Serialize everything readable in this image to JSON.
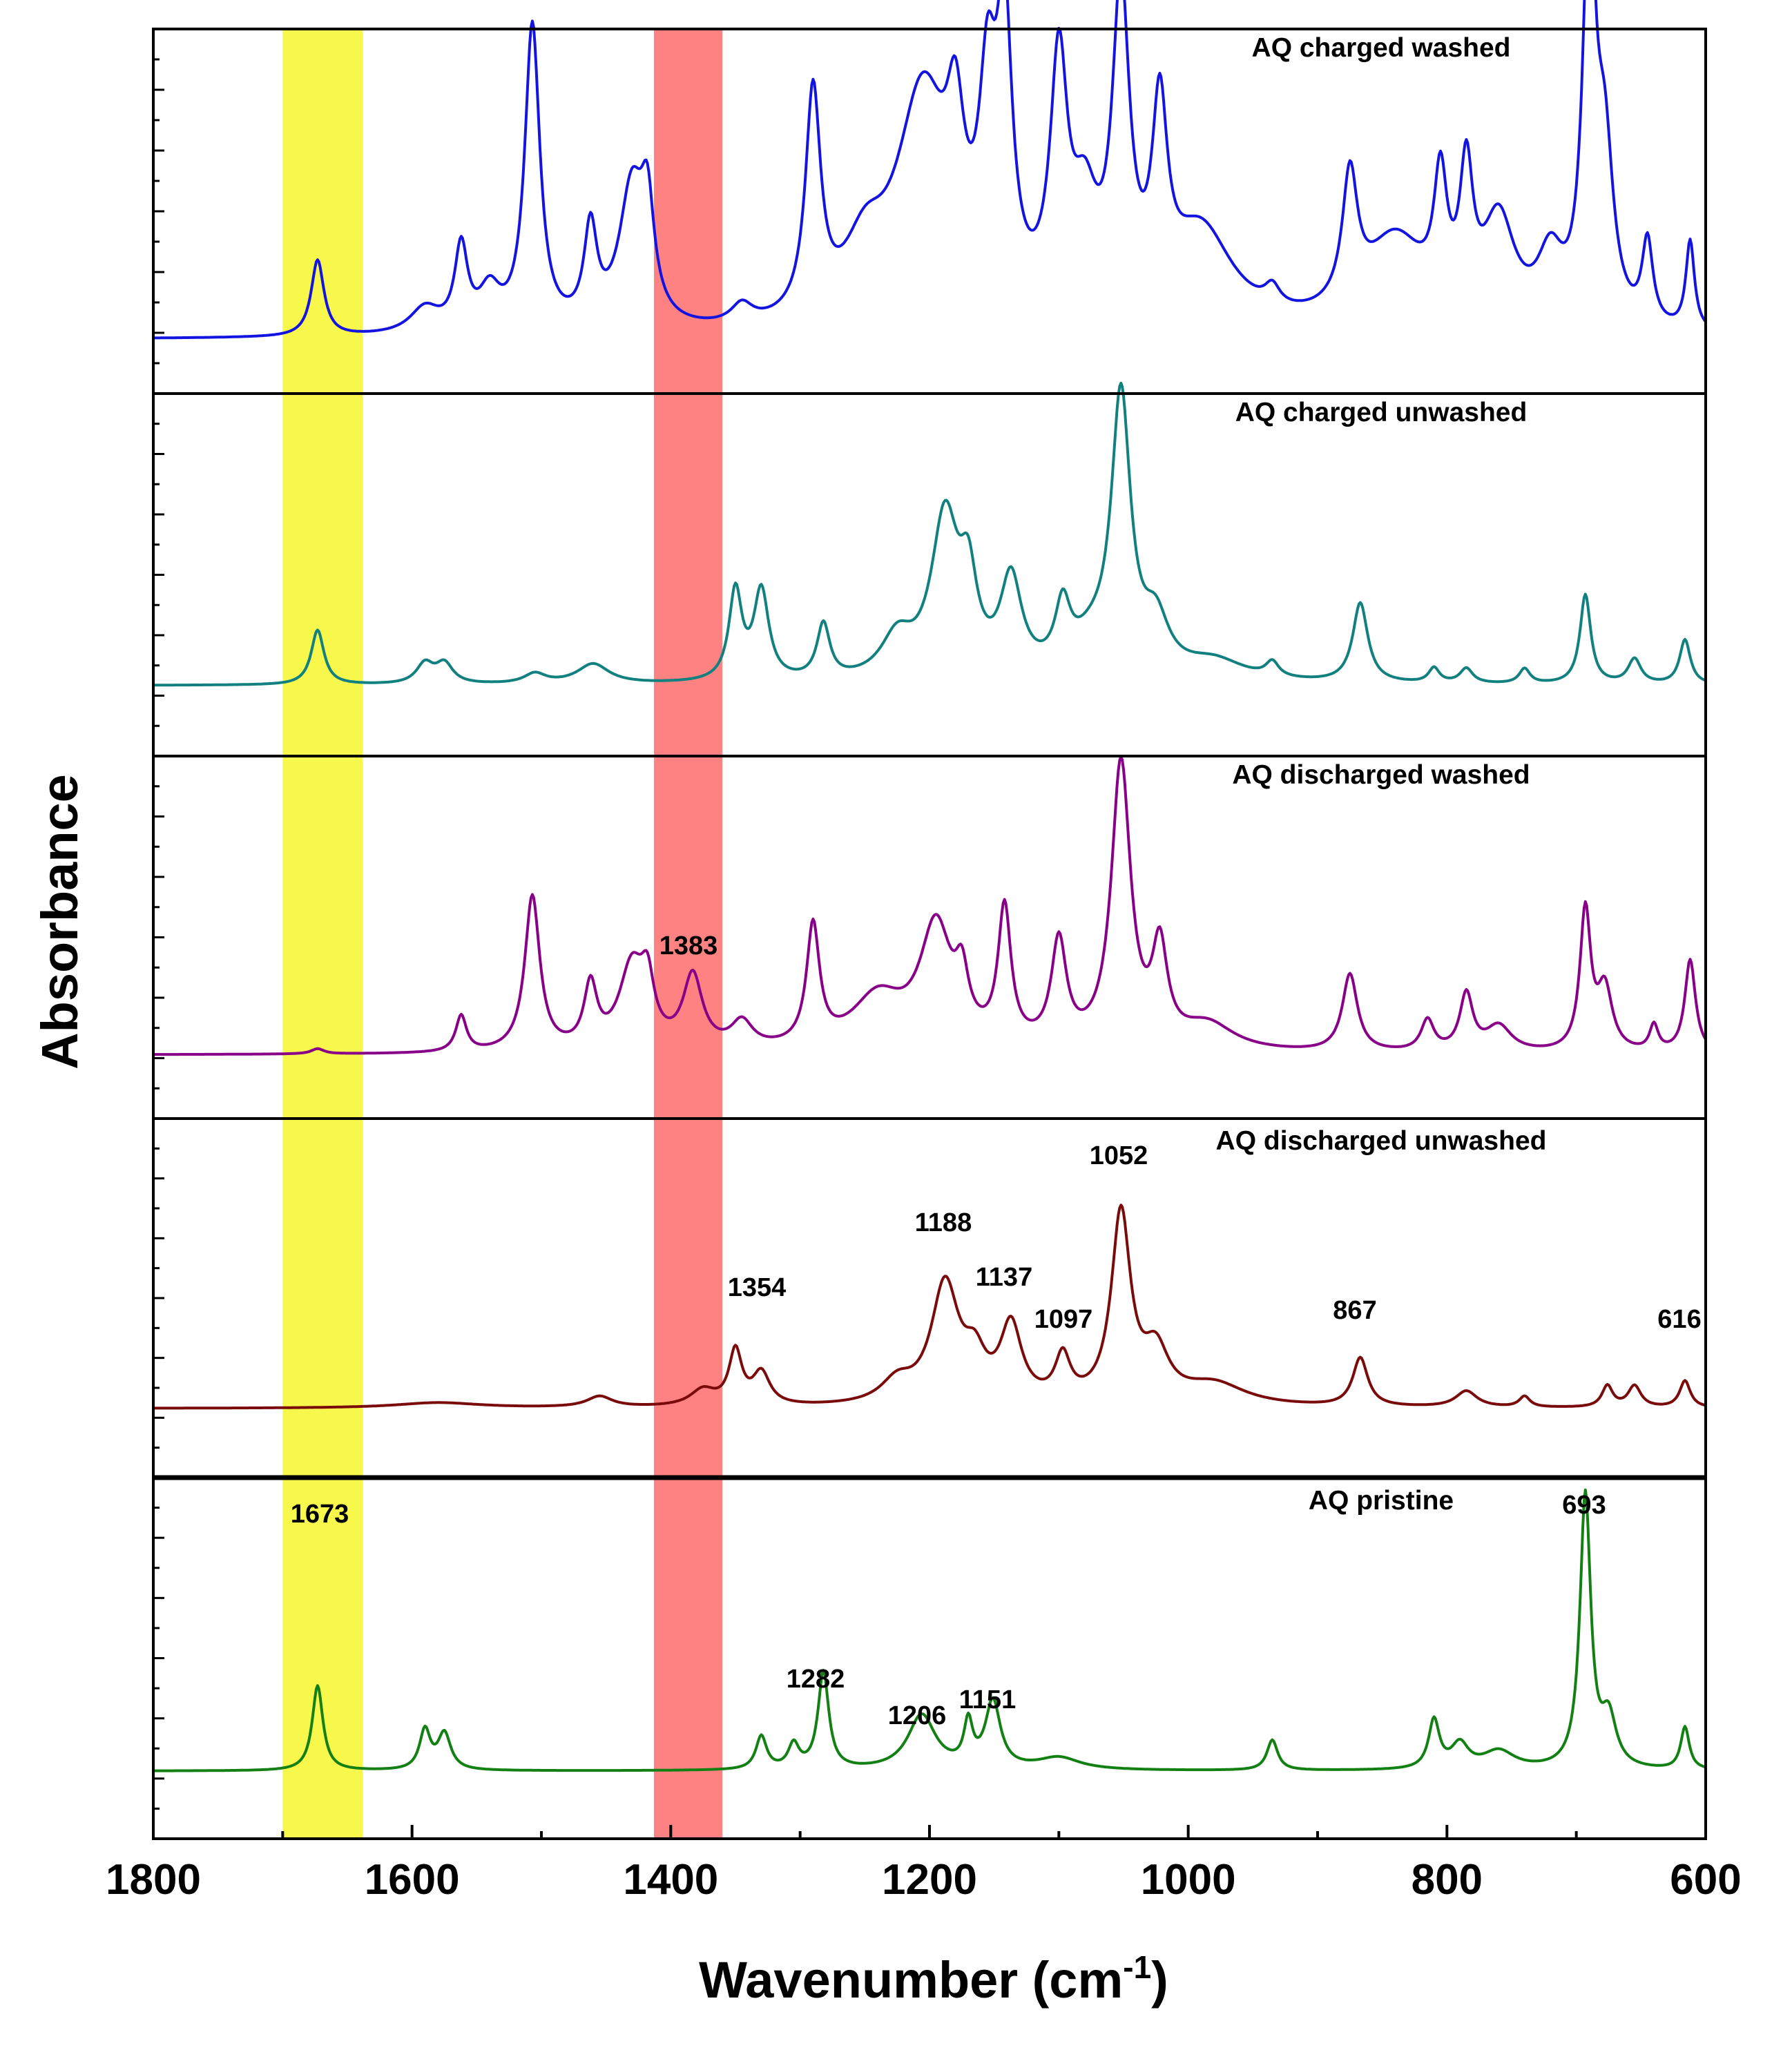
{
  "chart_data": {
    "type": "line",
    "xlabel": "Wavenumber (cm",
    "xlabel_superscript": "-1",
    "xlabel_suffix": ")",
    "ylabel": "Absorbance",
    "xlim": [
      1800,
      600
    ],
    "x_ticks": [
      1800,
      1600,
      1400,
      1200,
      1000,
      800,
      600
    ],
    "highlight_bands": [
      {
        "name": "yellow-band",
        "from": 1700,
        "to": 1638,
        "color": "#f5f500"
      },
      {
        "name": "red-band",
        "from": 1413,
        "to": 1360,
        "color": "#ff4d4d"
      }
    ],
    "series": [
      {
        "name": "AQ charged washed",
        "color": "#1414e0",
        "baseline": 1700,
        "peaks": [
          [
            1673,
            1.2,
            6
          ],
          [
            1590,
            0.4,
            14
          ],
          [
            1562,
            1.3,
            6
          ],
          [
            1540,
            0.6,
            10
          ],
          [
            1507,
            4.8,
            7
          ],
          [
            1462,
            1.5,
            6
          ],
          [
            1430,
            2.2,
            12
          ],
          [
            1418,
            1.5,
            6
          ],
          [
            1345,
            0.3,
            10
          ],
          [
            1290,
            3.5,
            7
          ],
          [
            1250,
            1.0,
            20
          ],
          [
            1205,
            3.6,
            25
          ],
          [
            1180,
            2.0,
            8
          ],
          [
            1155,
            3.0,
            8
          ],
          [
            1142,
            4.2,
            7
          ],
          [
            1100,
            3.8,
            8
          ],
          [
            1080,
            1.5,
            12
          ],
          [
            1052,
            4.9,
            8
          ],
          [
            1022,
            2.9,
            7
          ],
          [
            990,
            1.5,
            30
          ],
          [
            935,
            0.3,
            7
          ],
          [
            875,
            2.0,
            7
          ],
          [
            840,
            1.4,
            30
          ],
          [
            805,
            1.9,
            6
          ],
          [
            785,
            2.1,
            6
          ],
          [
            760,
            1.6,
            15
          ],
          [
            720,
            1.0,
            12
          ],
          [
            690,
            6.2,
            6
          ],
          [
            678,
            2.5,
            8
          ],
          [
            645,
            1.3,
            5
          ],
          [
            612,
            1.4,
            4
          ]
        ],
        "annotations": []
      },
      {
        "name": "AQ charged unwashed",
        "color": "#138080",
        "baseline": 1700,
        "peaks": [
          [
            1673,
            1.1,
            6
          ],
          [
            1590,
            0.4,
            8
          ],
          [
            1575,
            0.4,
            8
          ],
          [
            1505,
            0.2,
            10
          ],
          [
            1460,
            0.4,
            15
          ],
          [
            1350,
            1.8,
            6
          ],
          [
            1330,
            1.8,
            7
          ],
          [
            1282,
            1.1,
            6
          ],
          [
            1225,
            0.8,
            15
          ],
          [
            1188,
            3.2,
            13
          ],
          [
            1170,
            1.6,
            8
          ],
          [
            1137,
            1.9,
            10
          ],
          [
            1097,
            1.2,
            7
          ],
          [
            1075,
            0.6,
            20
          ],
          [
            1052,
            5.5,
            9
          ],
          [
            1025,
            1.0,
            12
          ],
          [
            980,
            0.4,
            30
          ],
          [
            935,
            0.3,
            6
          ],
          [
            867,
            1.6,
            7
          ],
          [
            810,
            0.3,
            5
          ],
          [
            785,
            0.3,
            6
          ],
          [
            740,
            0.3,
            5
          ],
          [
            693,
            1.8,
            5
          ],
          [
            655,
            0.5,
            6
          ],
          [
            616,
            0.9,
            5
          ]
        ],
        "annotations": []
      },
      {
        "name": "AQ discharged washed",
        "color": "#880088",
        "baseline": 1700,
        "peaks": [
          [
            1673,
            0.1,
            6
          ],
          [
            1562,
            0.7,
            5
          ],
          [
            1507,
            3.0,
            7
          ],
          [
            1462,
            1.2,
            6
          ],
          [
            1430,
            1.6,
            12
          ],
          [
            1418,
            1.0,
            6
          ],
          [
            1383,
            1.4,
            9
          ],
          [
            1345,
            0.5,
            10
          ],
          [
            1290,
            2.3,
            6
          ],
          [
            1240,
            1.0,
            25
          ],
          [
            1195,
            2.3,
            15
          ],
          [
            1175,
            1.0,
            6
          ],
          [
            1142,
            2.6,
            6
          ],
          [
            1100,
            2.0,
            7
          ],
          [
            1052,
            5.5,
            9
          ],
          [
            1022,
            1.8,
            7
          ],
          [
            985,
            0.5,
            25
          ],
          [
            875,
            1.5,
            7
          ],
          [
            815,
            0.6,
            6
          ],
          [
            785,
            1.1,
            6
          ],
          [
            760,
            0.5,
            12
          ],
          [
            693,
            2.7,
            5
          ],
          [
            678,
            1.2,
            7
          ],
          [
            640,
            0.5,
            4
          ],
          [
            612,
            1.8,
            5
          ]
        ],
        "annotations": [
          {
            "label": "1383",
            "x": 1383
          }
        ]
      },
      {
        "name": "AQ discharged unwashed",
        "color": "#7a0b0b",
        "baseline": 1700,
        "peaks": [
          [
            1580,
            0.1,
            40
          ],
          [
            1455,
            0.2,
            12
          ],
          [
            1375,
            0.3,
            12
          ],
          [
            1350,
            1.0,
            6
          ],
          [
            1330,
            0.6,
            8
          ],
          [
            1225,
            0.4,
            15
          ],
          [
            1188,
            2.2,
            13
          ],
          [
            1165,
            0.7,
            10
          ],
          [
            1137,
            1.4,
            10
          ],
          [
            1097,
            0.8,
            7
          ],
          [
            1052,
            3.5,
            9
          ],
          [
            1025,
            0.9,
            12
          ],
          [
            980,
            0.4,
            30
          ],
          [
            867,
            0.9,
            7
          ],
          [
            785,
            0.3,
            10
          ],
          [
            740,
            0.2,
            5
          ],
          [
            676,
            0.4,
            5
          ],
          [
            655,
            0.4,
            6
          ],
          [
            616,
            0.5,
            5
          ]
        ],
        "annotations": [
          {
            "label": "1354",
            "x": 1354
          },
          {
            "label": "1188",
            "x": 1188
          },
          {
            "label": "1137",
            "x": 1137
          },
          {
            "label": "1097",
            "x": 1097
          },
          {
            "label": "1052",
            "x": 1052
          },
          {
            "label": "867",
            "x": 867
          },
          {
            "label": "616",
            "x": 616
          }
        ]
      },
      {
        "name": "AQ pristine",
        "color": "#138013",
        "baseline": 1700,
        "peaks": [
          [
            1673,
            1.4,
            5
          ],
          [
            1590,
            0.65,
            5
          ],
          [
            1575,
            0.6,
            6
          ],
          [
            1330,
            0.55,
            5
          ],
          [
            1305,
            0.4,
            5
          ],
          [
            1282,
            1.6,
            5
          ],
          [
            1206,
            0.9,
            13
          ],
          [
            1170,
            0.7,
            4
          ],
          [
            1151,
            1.1,
            7
          ],
          [
            1100,
            0.2,
            20
          ],
          [
            935,
            0.5,
            5
          ],
          [
            810,
            0.8,
            5
          ],
          [
            790,
            0.4,
            8
          ],
          [
            760,
            0.3,
            15
          ],
          [
            693,
            4.5,
            5
          ],
          [
            675,
            0.8,
            7
          ],
          [
            616,
            0.7,
            4
          ]
        ],
        "annotations": [
          {
            "label": "1673",
            "x": 1673
          },
          {
            "label": "1282",
            "x": 1282
          },
          {
            "label": "1206",
            "x": 1206
          },
          {
            "label": "1151",
            "x": 1151
          },
          {
            "label": "693",
            "x": 693
          }
        ]
      }
    ]
  }
}
